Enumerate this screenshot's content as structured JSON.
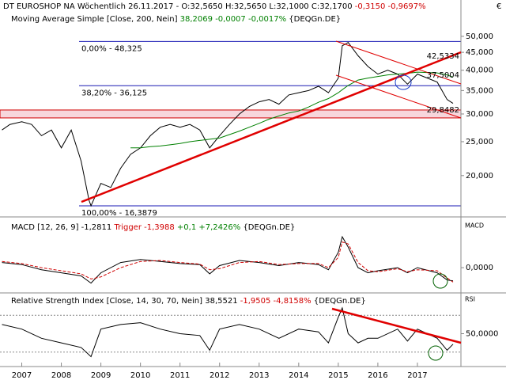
{
  "currency": "€",
  "chart_data": [
    {
      "type": "line",
      "log": true,
      "title": [
        "DT EUROSHOP NA Wöchentlich",
        "26.11.2017 - O:32,5650 H:32,5650 L:32,1000 C:32,1700",
        "-0,3150 -0,9697%"
      ],
      "subtitle": [
        "Moving Average Simple [Close, 200, Nein]",
        "38,2069 -0,0007 -0,0017%",
        "{DEQGn.DE}"
      ],
      "xlim": [
        2006.45,
        2018.1
      ],
      "ylim": [
        15.4,
        63.5
      ],
      "yticks": [
        {
          "value": 20,
          "label": "20,000"
        },
        {
          "value": 25,
          "label": "25,000"
        },
        {
          "value": 30,
          "label": "30,000"
        },
        {
          "value": 35,
          "label": "35,000"
        },
        {
          "value": 40,
          "label": "40,000"
        },
        {
          "value": 45,
          "label": "45,000"
        },
        {
          "value": 50,
          "label": "50,000"
        }
      ],
      "x": [
        2006.5,
        2006.7,
        2007.0,
        2007.25,
        2007.5,
        2007.75,
        2008.0,
        2008.25,
        2008.5,
        2008.7,
        2008.75,
        2009.0,
        2009.25,
        2009.5,
        2009.75,
        2010.0,
        2010.25,
        2010.5,
        2010.75,
        2011.0,
        2011.25,
        2011.5,
        2011.75,
        2012.0,
        2012.25,
        2012.5,
        2012.75,
        2013.0,
        2013.25,
        2013.5,
        2013.75,
        2014.0,
        2014.25,
        2014.5,
        2014.75,
        2015.0,
        2015.1,
        2015.25,
        2015.5,
        2015.75,
        2016.0,
        2016.25,
        2016.5,
        2016.75,
        2017.0,
        2017.25,
        2017.5,
        2017.75,
        2017.9
      ],
      "series": [
        {
          "color": "#000000",
          "values": [
            27,
            28,
            28.5,
            28,
            26,
            27,
            24,
            27,
            22,
            17,
            16.4,
            19,
            18.5,
            21,
            23,
            24,
            26,
            27.5,
            28,
            27.5,
            28,
            27,
            24,
            26,
            28,
            30,
            31.5,
            32.5,
            33,
            32,
            34,
            34.5,
            35,
            36,
            34.5,
            38,
            47,
            48,
            44,
            41,
            39,
            40,
            39,
            36.5,
            39,
            38,
            37,
            33,
            32.17
          ]
        },
        {
          "color": "#008000",
          "values": [
            null,
            null,
            null,
            null,
            null,
            null,
            null,
            null,
            null,
            null,
            null,
            null,
            null,
            null,
            24,
            24,
            24.2,
            24.3,
            24.5,
            24.7,
            25,
            25.2,
            25.4,
            25.6,
            26.2,
            26.8,
            27.5,
            28.2,
            29,
            29.6,
            30.2,
            30.6,
            31.4,
            32.4,
            33.2,
            34.5,
            35.2,
            36.2,
            37.5,
            38,
            38.4,
            38.8,
            39,
            39.2,
            39.5,
            39.4,
            39.3,
            38.8,
            38.2069
          ]
        }
      ],
      "fib": [
        {
          "text": "0,00% - 48,325",
          "value": 48.325
        },
        {
          "text": "38,20% - 36,125",
          "value": 36.125
        },
        {
          "text": "100,00% - 16,3879",
          "value": 16.3879
        }
      ],
      "levels": [
        {
          "text": "42,5334",
          "value": 42.5334
        },
        {
          "text": "37,5004",
          "value": 37.5004
        },
        {
          "text": "29,8482",
          "value": 29.8482,
          "band": true
        }
      ]
    },
    {
      "type": "line",
      "label": "MACD",
      "title": [
        "MACD [12, 26, 9] -1,2811",
        "Trigger -1,3988",
        "+0,1 +7,2426%",
        "{DEQGn.DE}"
      ],
      "xlim": [
        2006.45,
        2018.1
      ],
      "ylim": [
        -2.3,
        4.7
      ],
      "yticks": [
        {
          "value": 0,
          "label": "0,0000"
        }
      ],
      "x": [
        2006.5,
        2007,
        2007.5,
        2008,
        2008.5,
        2008.75,
        2009,
        2009.5,
        2010,
        2010.5,
        2011,
        2011.5,
        2011.75,
        2012,
        2012.5,
        2013,
        2013.5,
        2014,
        2014.5,
        2014.75,
        2015,
        2015.1,
        2015.25,
        2015.5,
        2015.75,
        2016,
        2016.5,
        2016.75,
        2017,
        2017.5,
        2017.75,
        2017.9
      ],
      "series": [
        {
          "color": "#000000",
          "values": [
            0.5,
            0.3,
            -0.2,
            -0.5,
            -0.8,
            -1.5,
            -0.5,
            0.5,
            0.8,
            0.6,
            0.4,
            0.3,
            -0.6,
            0.2,
            0.7,
            0.5,
            0.2,
            0.5,
            0.3,
            -0.2,
            1.5,
            3,
            2,
            0,
            -0.5,
            -0.3,
            0,
            -0.5,
            0,
            -0.5,
            -1.2,
            -1.2811
          ]
        },
        {
          "color": "#d00000",
          "dashed": true,
          "values": [
            0.6,
            0.4,
            0,
            -0.3,
            -0.6,
            -1.1,
            -0.9,
            0,
            0.6,
            0.7,
            0.5,
            0.35,
            -0.2,
            -0.1,
            0.5,
            0.6,
            0.3,
            0.4,
            0.4,
            0,
            1.0,
            2.5,
            2.3,
            0.5,
            -0.3,
            -0.4,
            -0.1,
            -0.4,
            -0.2,
            -0.3,
            -1.0,
            -1.3988
          ]
        }
      ]
    },
    {
      "type": "line",
      "label": "RSI",
      "title": [
        "Relative Strength Index [Close, 14, 30, 70, Nein] 38,5521",
        "-1,9505 -4,8158%",
        "{DEQGn.DE}"
      ],
      "xlim": [
        2006.45,
        2018.1
      ],
      "ylim": [
        16,
        92.6
      ],
      "yticks": [
        {
          "value": 50,
          "label": "50,0000"
        }
      ],
      "levels": [
        30,
        70
      ],
      "xticks": [
        2007,
        2008,
        2009,
        2010,
        2011,
        2012,
        2013,
        2014,
        2015,
        2016,
        2017
      ],
      "x": [
        2006.5,
        2007,
        2007.5,
        2008,
        2008.5,
        2008.75,
        2009,
        2009.5,
        2010,
        2010.5,
        2011,
        2011.5,
        2011.75,
        2012,
        2012.5,
        2013,
        2013.5,
        2014,
        2014.5,
        2014.75,
        2015,
        2015.1,
        2015.25,
        2015.5,
        2015.75,
        2016,
        2016.5,
        2016.75,
        2017,
        2017.5,
        2017.75,
        2017.9
      ],
      "series": [
        {
          "color": "#000000",
          "values": [
            60,
            55,
            45,
            40,
            35,
            25,
            55,
            60,
            62,
            55,
            50,
            48,
            32,
            55,
            60,
            55,
            45,
            55,
            52,
            40,
            68,
            78,
            50,
            40,
            45,
            45,
            55,
            42,
            55,
            45,
            32,
            38.5521
          ]
        }
      ]
    }
  ]
}
